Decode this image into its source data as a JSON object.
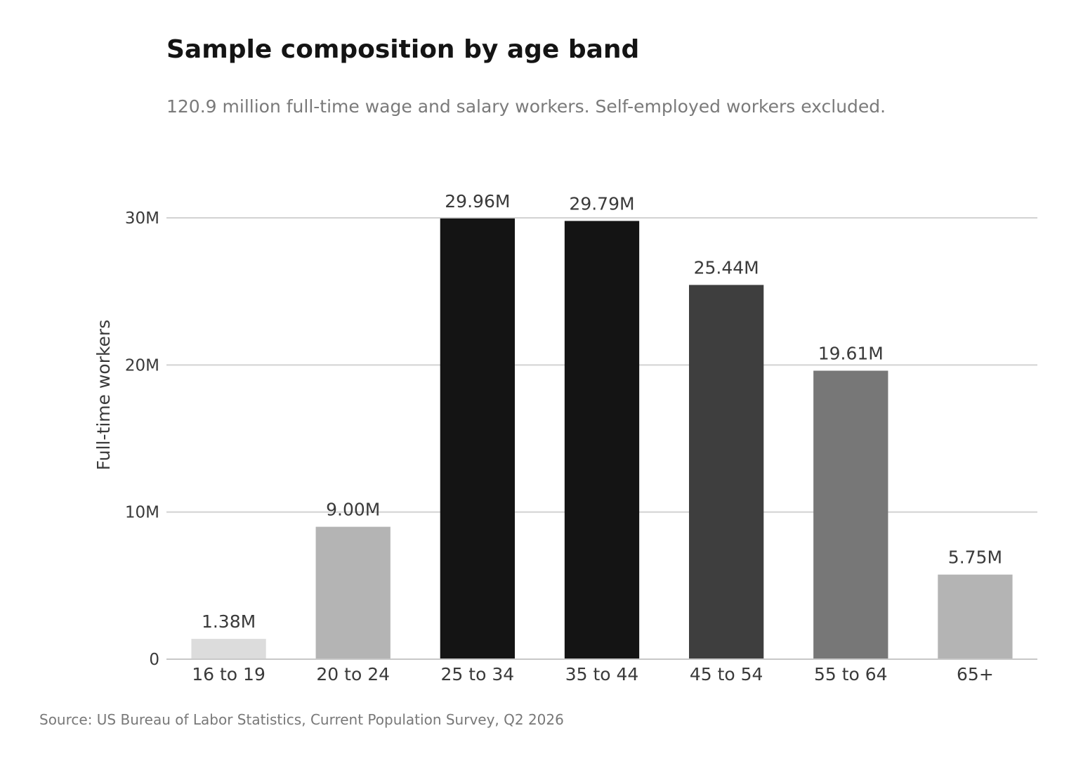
{
  "chart_data": {
    "type": "bar",
    "title": "Sample composition by age band",
    "subtitle": "120.9 million full-time wage and salary workers. Self-employed workers excluded.",
    "xlabel": "",
    "ylabel": "Full-time workers",
    "ylim": [
      0,
      30
    ],
    "y_unit": "millions",
    "y_ticks": [
      0,
      10,
      20,
      30
    ],
    "y_tick_labels": [
      "0",
      "10M",
      "20M",
      "30M"
    ],
    "grid": true,
    "categories": [
      "16 to 19",
      "20 to 24",
      "25 to 34",
      "35 to 44",
      "45 to 54",
      "55 to 64",
      "65+"
    ],
    "values": [
      1.38,
      9.0,
      29.96,
      29.79,
      25.44,
      19.61,
      5.75
    ],
    "value_labels": [
      "1.38M",
      "9.00M",
      "29.96M",
      "29.79M",
      "25.44M",
      "19.61M",
      "5.75M"
    ],
    "bar_colors": [
      "#dcdcdc",
      "#b4b4b4",
      "#141414",
      "#141414",
      "#3e3e3e",
      "#777777",
      "#b4b4b4"
    ],
    "source": "Source: US Bureau of Labor Statistics, Current Population Survey, Q2 2026"
  }
}
